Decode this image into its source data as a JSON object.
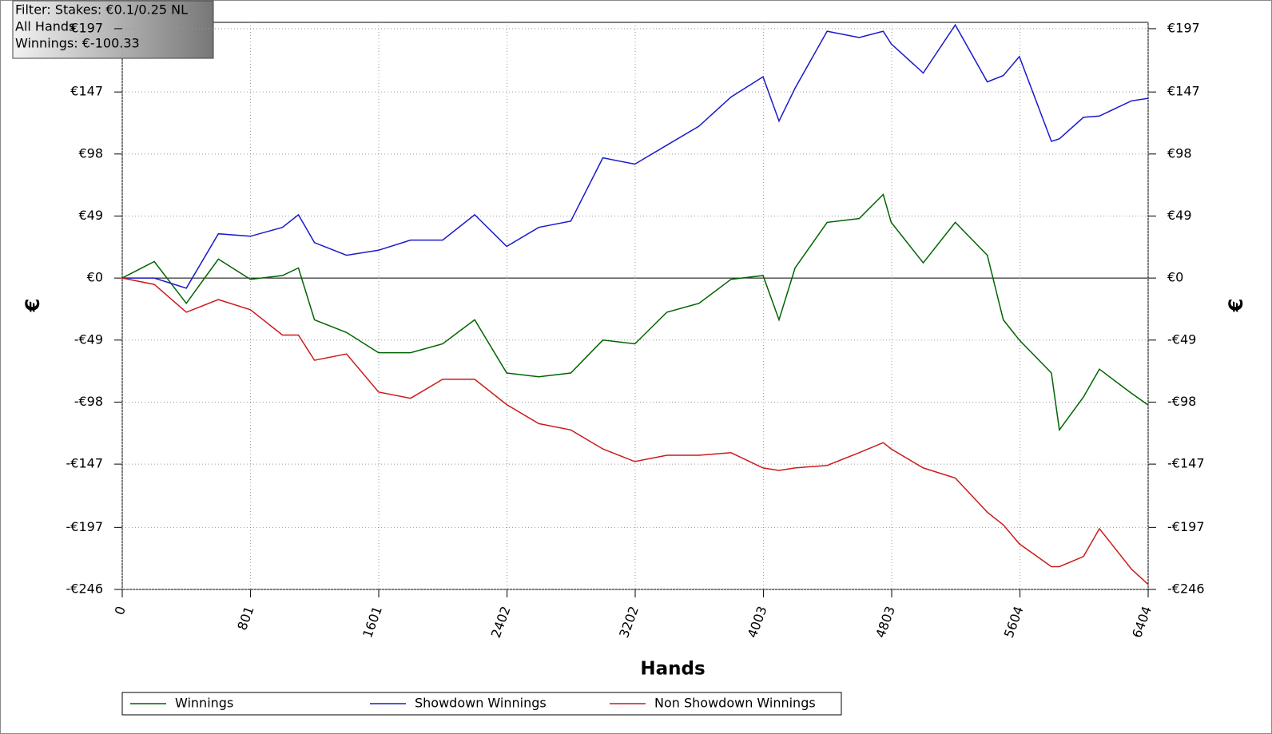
{
  "chart_data": {
    "type": "line",
    "annotations": [
      "Filter: Stakes: €0.1/0.25 NL",
      "All Hands",
      "Winnings: €-100.33"
    ],
    "xlabel": "Hands",
    "ylabel": "€",
    "y2label": "€",
    "x": [
      0,
      200,
      400,
      600,
      800,
      1000,
      1100,
      1200,
      1400,
      1600,
      1800,
      2000,
      2200,
      2400,
      2600,
      2800,
      3000,
      3200,
      3400,
      3600,
      3800,
      4000,
      4100,
      4200,
      4400,
      4600,
      4750,
      4800,
      5000,
      5200,
      5400,
      5500,
      5600,
      5800,
      5850,
      6000,
      6100,
      6300,
      6404
    ],
    "series": [
      {
        "name": "Winnings",
        "color": "#006400",
        "values": [
          0,
          13,
          -20,
          15,
          -1,
          2,
          8,
          -33,
          -43,
          -59,
          -59,
          -52,
          -33,
          -75,
          -78,
          -75,
          -49,
          -52,
          -27,
          -20,
          -1,
          2,
          -33,
          8,
          44,
          47,
          66,
          44,
          12,
          44,
          18,
          -33,
          -49,
          -75,
          -120,
          -94,
          -72,
          -91,
          -100.33
        ]
      },
      {
        "name": "Showdown Winnings",
        "color": "#1a1acc",
        "values": [
          0,
          0,
          -8,
          35,
          33,
          40,
          50,
          28,
          18,
          22,
          30,
          30,
          50,
          25,
          40,
          45,
          95,
          90,
          105,
          120,
          143,
          159,
          124,
          150,
          195,
          190,
          195,
          185,
          162,
          200,
          155,
          160,
          175,
          108,
          110,
          127,
          128,
          140,
          142
        ]
      },
      {
        "name": "Non Showdown Winnings",
        "color": "#cc1a1a",
        "values": [
          0,
          -5,
          -27,
          -17,
          -25,
          -45,
          -45,
          -65,
          -60,
          -90,
          -95,
          -80,
          -80,
          -100,
          -115,
          -120,
          -135,
          -145,
          -140,
          -140,
          -138,
          -150,
          -152,
          -150,
          -148,
          -138,
          -130,
          -135,
          -150,
          -158,
          -185,
          -195,
          -210,
          -228,
          -228,
          -220,
          -198,
          -230,
          -242
        ]
      }
    ],
    "xlim": [
      0,
      6404
    ],
    "xticks": [
      0,
      801,
      1601,
      2402,
      3202,
      4003,
      4803,
      5604,
      6404
    ],
    "ylim": [
      -246,
      202
    ],
    "yticks": [
      {
        "value": -246,
        "label": "-€246"
      },
      {
        "value": -197,
        "label": "-€197"
      },
      {
        "value": -147,
        "label": "-€147"
      },
      {
        "value": -98,
        "label": "-€98"
      },
      {
        "value": -49,
        "label": "-€49"
      },
      {
        "value": 0,
        "label": "€0"
      },
      {
        "value": 49,
        "label": "€49"
      },
      {
        "value": 98,
        "label": "€98"
      },
      {
        "value": 147,
        "label": "€147"
      },
      {
        "value": 197,
        "label": "€197"
      }
    ],
    "grid": true
  }
}
